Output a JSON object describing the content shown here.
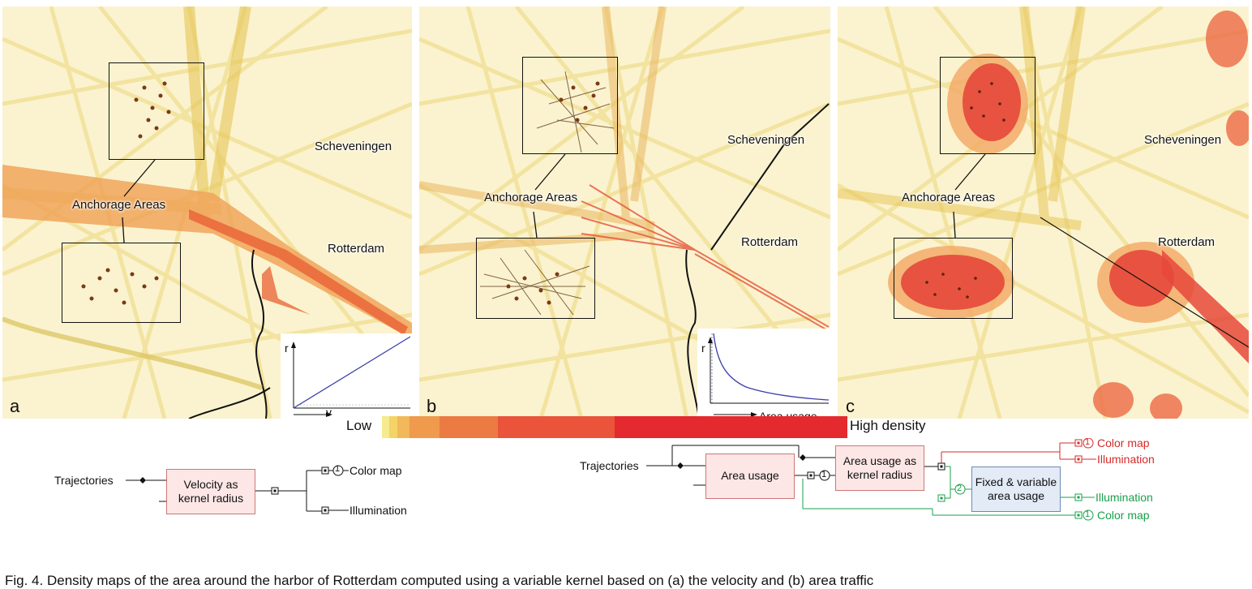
{
  "panels": [
    {
      "letter": "a",
      "scheveningen": "Scheveningen",
      "anchorage": "Anchorage Areas",
      "rotterdam": "Rotterdam",
      "inset_y": "r",
      "inset_x": "v"
    },
    {
      "letter": "b",
      "scheveningen": "Scheveningen",
      "anchorage": "Anchorage Areas",
      "rotterdam": "Rotterdam",
      "inset_y": "r",
      "inset_x": "Area usage"
    },
    {
      "letter": "c",
      "scheveningen": "Scheveningen",
      "anchorage": "Anchorage Areas",
      "rotterdam": "Rotterdam"
    }
  ],
  "legend": {
    "low": "Low",
    "high": "High density",
    "colors": [
      "#f7ea8f",
      "#f4d466",
      "#f2b85a",
      "#ef9a4c",
      "#ec7a43",
      "#e9543b",
      "#e4292f"
    ]
  },
  "flow_left": {
    "input": "Trajectories",
    "node": "Velocity as kernel radius",
    "out1_num": "1",
    "out1": "Color map",
    "out2": "Illumination"
  },
  "flow_right": {
    "input": "Trajectories",
    "node1": "Area usage",
    "num1": "1",
    "node2": "Area usage as kernel radius",
    "red_num": "1",
    "red_out1": "Color map",
    "red_out2": "Illumination",
    "num2": "2",
    "node3": "Fixed & variable area usage",
    "green_out1": "Illumination",
    "green_num": "1",
    "green_out2": "Color map"
  },
  "caption": "Fig. 4.  Density maps of the area around the harbor of Rotterdam computed using a variable kernel based on (a) the velocity and (b) area traffic"
}
